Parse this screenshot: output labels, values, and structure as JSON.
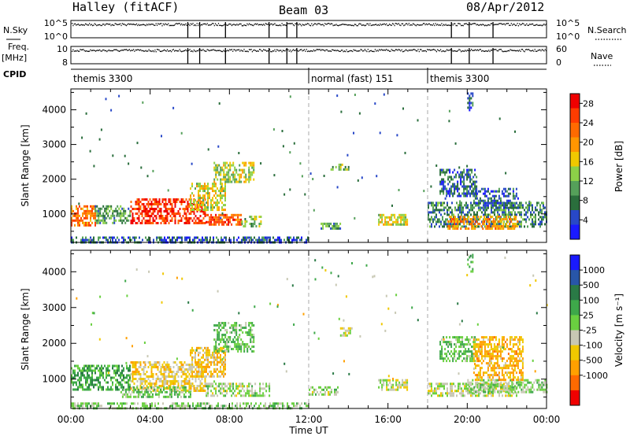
{
  "header": {
    "title": "Halley (fitACF)",
    "beam": "Beam 03",
    "date": "08/Apr/2012"
  },
  "strips": {
    "nsky_label": "N.Sky",
    "nsky_ticks": [
      "10^5",
      "10^0"
    ],
    "nsearch_label": "N.Search",
    "nsearch_ticks": [
      "10^5",
      "10^0"
    ],
    "freq_label": "Freq.",
    "freq_unit": "[MHz]",
    "freq_ticks": [
      "10",
      "8"
    ],
    "nave_label": "Nave",
    "nave_ticks": [
      "60",
      "0"
    ],
    "cpid_label": "CPID",
    "cpid_segments": [
      {
        "name": "themis 3300",
        "start": 0,
        "end": 12
      },
      {
        "name": "normal (fast) 151",
        "start": 12,
        "end": 18
      },
      {
        "name": "themis 3300",
        "start": 18,
        "end": 24
      }
    ],
    "gap_times": [
      5.9,
      6.5,
      7.8,
      10.0,
      10.9,
      11.4,
      19.2,
      20.1,
      21.3
    ]
  },
  "colors": {
    "power_scale": [
      "#1a1aff",
      "#2848c8",
      "#2a6e3c",
      "#55a05a",
      "#8cd048",
      "#f0c800",
      "#ff9600",
      "#ff6a00",
      "#ff3c00",
      "#f00000"
    ],
    "velocity_scale": [
      "#1a1aff",
      "#2856a8",
      "#2a7a46",
      "#3ea84a",
      "#6ad040",
      "#c8c8b4",
      "#f0c800",
      "#ffa000",
      "#ff6a00",
      "#f00000"
    ]
  },
  "chart_data": [
    {
      "type": "heatmap",
      "title": "",
      "xlabel": "",
      "ylabel": "Slant Range [km]",
      "xlim": [
        0,
        24
      ],
      "ylim": [
        180,
        4600
      ],
      "xtick_labels": [
        "00:00",
        "04:00",
        "08:00",
        "12:00",
        "16:00",
        "20:00",
        "00:00"
      ],
      "ytick_labels": [
        "1000",
        "2000",
        "3000",
        "4000"
      ],
      "colorbar_label": "Power [dB]",
      "colorbar_ticks": [
        "4",
        "8",
        "12",
        "16",
        "20",
        "24",
        "28"
      ],
      "colorbar_range": [
        0,
        30
      ],
      "regions": [
        {
          "t": [
            0,
            1.2
          ],
          "r": [
            700,
            1250
          ],
          "val": 22
        },
        {
          "t": [
            1.2,
            3.0
          ],
          "r": [
            750,
            1250
          ],
          "val": 10
        },
        {
          "t": [
            3.0,
            6.8
          ],
          "r": [
            750,
            1450
          ],
          "val": 26
        },
        {
          "t": [
            6.8,
            8.6
          ],
          "r": [
            700,
            1000
          ],
          "val": 24
        },
        {
          "t": [
            6.0,
            7.8
          ],
          "r": [
            1100,
            1900
          ],
          "val": 16
        },
        {
          "t": [
            8.6,
            9.6
          ],
          "r": [
            650,
            950
          ],
          "val": 12
        },
        {
          "t": [
            7.2,
            9.2
          ],
          "r": [
            1900,
            2500
          ],
          "val": 14
        },
        {
          "t": [
            0,
            12
          ],
          "r": [
            180,
            350
          ],
          "val": 6
        },
        {
          "t": [
            13.1,
            14.1
          ],
          "r": [
            2250,
            2450
          ],
          "val": 12
        },
        {
          "t": [
            12.6,
            13.6
          ],
          "r": [
            600,
            750
          ],
          "val": 10
        },
        {
          "t": [
            15.5,
            17.0
          ],
          "r": [
            700,
            1000
          ],
          "val": 16
        },
        {
          "t": [
            18.0,
            24.0
          ],
          "r": [
            650,
            1350
          ],
          "val": 8
        },
        {
          "t": [
            19.0,
            22.5
          ],
          "r": [
            600,
            950
          ],
          "val": 20
        },
        {
          "t": [
            18.6,
            20.5
          ],
          "r": [
            1500,
            2300
          ],
          "val": 6
        },
        {
          "t": [
            20.3,
            22.6
          ],
          "r": [
            1150,
            1750
          ],
          "val": 6
        },
        {
          "t": [
            20.0,
            20.3
          ],
          "r": [
            4000,
            4500
          ],
          "val": 6
        }
      ]
    },
    {
      "type": "heatmap",
      "title": "",
      "xlabel": "Time UT",
      "ylabel": "Slant Range [km]",
      "xlim": [
        0,
        24
      ],
      "ylim": [
        180,
        4600
      ],
      "xtick_labels": [
        "00:00",
        "04:00",
        "08:00",
        "12:00",
        "16:00",
        "20:00",
        "00:00"
      ],
      "ytick_labels": [
        "1000",
        "2000",
        "3000",
        "4000"
      ],
      "colorbar_label": "Velocity [m s⁻¹]",
      "colorbar_ticks": [
        "1000",
        "500",
        "100",
        "25",
        "-25",
        "-100",
        "-500",
        "-1000"
      ],
      "colorbar_range": [
        -1250,
        1250
      ],
      "regions": [
        {
          "t": [
            0,
            3.0
          ],
          "r": [
            700,
            1400
          ],
          "val": 350
        },
        {
          "t": [
            3.0,
            6.8
          ],
          "r": [
            700,
            1500
          ],
          "val": -300
        },
        {
          "t": [
            2.5,
            6.0
          ],
          "r": [
            500,
            800
          ],
          "val": 150
        },
        {
          "t": [
            6.0,
            7.8
          ],
          "r": [
            1100,
            1900
          ],
          "val": -400
        },
        {
          "t": [
            6.8,
            10.0
          ],
          "r": [
            550,
            900
          ],
          "val": 0
        },
        {
          "t": [
            7.2,
            9.2
          ],
          "r": [
            1800,
            2600
          ],
          "val": 200
        },
        {
          "t": [
            0,
            12
          ],
          "r": [
            180,
            350
          ],
          "val": 120
        },
        {
          "t": [
            12.0,
            13.5
          ],
          "r": [
            600,
            800
          ],
          "val": 0
        },
        {
          "t": [
            13.5,
            14.2
          ],
          "r": [
            2200,
            2450
          ],
          "val": -200
        },
        {
          "t": [
            15.5,
            17.0
          ],
          "r": [
            700,
            1000
          ],
          "val": -150
        },
        {
          "t": [
            18.0,
            22.5
          ],
          "r": [
            550,
            900
          ],
          "val": -80
        },
        {
          "t": [
            20.0,
            24.0
          ],
          "r": [
            650,
            1000
          ],
          "val": 100
        },
        {
          "t": [
            18.6,
            20.5
          ],
          "r": [
            1500,
            2200
          ],
          "val": 200
        },
        {
          "t": [
            20.3,
            22.8
          ],
          "r": [
            1000,
            2200
          ],
          "val": -500
        },
        {
          "t": [
            20.0,
            20.3
          ],
          "r": [
            4000,
            4500
          ],
          "val": 200
        }
      ]
    }
  ]
}
